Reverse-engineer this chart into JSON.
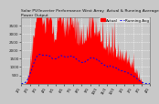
{
  "title": "Solar PV/Inverter Performance West Array  Actual & Running Average Power Output",
  "title_fontsize": 3.2,
  "bg_color": "#c8c8c8",
  "plot_bg_color": "#c8c8c8",
  "grid_color": "#ffffff",
  "bar_color": "#ff0000",
  "avg_color": "#0000ee",
  "ylim": [
    0,
    4000
  ],
  "yticks": [
    500,
    1000,
    1500,
    2000,
    2500,
    3000,
    3500
  ],
  "ytick_fontsize": 3.0,
  "xtick_fontsize": 2.8,
  "legend_fontsize": 3.0,
  "n_points": 300
}
